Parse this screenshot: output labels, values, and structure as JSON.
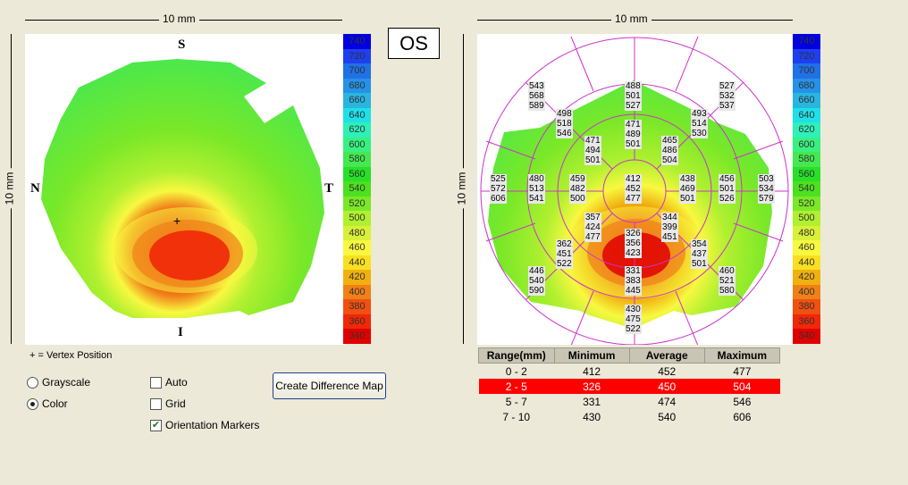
{
  "left_panel": {
    "dim_top": "10 mm",
    "dim_side": "10 mm",
    "markers": {
      "superior": "S",
      "inferior": "I",
      "nasal": "N",
      "temporal": "T"
    },
    "vertex_symbol": "+",
    "vertex_legend": "+ = Vertex Position"
  },
  "eye_label": "OS",
  "scale_values": [
    "740",
    "720",
    "700",
    "680",
    "660",
    "640",
    "620",
    "600",
    "580",
    "560",
    "540",
    "520",
    "500",
    "480",
    "460",
    "440",
    "420",
    "400",
    "380",
    "360",
    "340"
  ],
  "scale_colors": [
    "#0000e0",
    "#1d3ff0",
    "#2070e8",
    "#2592e8",
    "#29b5e0",
    "#1ee0e8",
    "#2ef0b8",
    "#38f080",
    "#45e850",
    "#27e028",
    "#4ee020",
    "#7ae828",
    "#b0f030",
    "#d8f038",
    "#f8f840",
    "#f8e020",
    "#f0b010",
    "#f08018",
    "#f05010",
    "#f02808",
    "#e00000"
  ],
  "controls": {
    "grayscale": "Grayscale",
    "color": "Color",
    "selected_mode": "Color",
    "auto": "Auto",
    "auto_checked": false,
    "grid": "Grid",
    "grid_checked": false,
    "orientation": "Orientation Markers",
    "orientation_checked": true,
    "diff_button": "Create Difference Map"
  },
  "right_panel": {
    "dim_top": "10 mm",
    "dim_side": "10 mm",
    "zones": [
      {
        "id": "center",
        "v": [
          "412",
          "452",
          "477"
        ]
      },
      {
        "id": "inner-up",
        "v": [
          "471",
          "489",
          "501"
        ]
      },
      {
        "id": "inner-upright",
        "v": [
          "465",
          "486",
          "504"
        ]
      },
      {
        "id": "inner-right",
        "v": [
          "438",
          "469",
          "501"
        ]
      },
      {
        "id": "inner-downright",
        "v": [
          "344",
          "399",
          "451"
        ]
      },
      {
        "id": "inner-down",
        "v": [
          "326",
          "356",
          "423"
        ]
      },
      {
        "id": "inner-downleft",
        "v": [
          "357",
          "424",
          "477"
        ]
      },
      {
        "id": "inner-left",
        "v": [
          "459",
          "482",
          "500"
        ]
      },
      {
        "id": "inner-upleft",
        "v": [
          "471",
          "494",
          "501"
        ]
      },
      {
        "id": "mid-up",
        "v": [
          "488",
          "501",
          "527"
        ]
      },
      {
        "id": "mid-upright",
        "v": [
          "493",
          "514",
          "530"
        ]
      },
      {
        "id": "mid-right",
        "v": [
          "456",
          "501",
          "526"
        ]
      },
      {
        "id": "mid-downright",
        "v": [
          "354",
          "437",
          "501"
        ]
      },
      {
        "id": "mid-down",
        "v": [
          "331",
          "383",
          "445"
        ]
      },
      {
        "id": "mid-downleft",
        "v": [
          "362",
          "451",
          "522"
        ]
      },
      {
        "id": "mid-left",
        "v": [
          "480",
          "513",
          "541"
        ]
      },
      {
        "id": "mid-upleft",
        "v": [
          "498",
          "518",
          "546"
        ]
      },
      {
        "id": "outer-upright",
        "v": [
          "527",
          "532",
          "537"
        ]
      },
      {
        "id": "outer-right",
        "v": [
          "503",
          "534",
          "579"
        ]
      },
      {
        "id": "outer-downright",
        "v": [
          "460",
          "521",
          "580"
        ]
      },
      {
        "id": "outer-down",
        "v": [
          "430",
          "475",
          "522"
        ]
      },
      {
        "id": "outer-downleft",
        "v": [
          "446",
          "540",
          "590"
        ]
      },
      {
        "id": "outer-left",
        "v": [
          "525",
          "572",
          "606"
        ]
      },
      {
        "id": "outer-upleft",
        "v": [
          "543",
          "568",
          "589"
        ]
      }
    ]
  },
  "table": {
    "headers": [
      "Range(mm)",
      "Minimum",
      "Average",
      "Maximum"
    ],
    "rows": [
      [
        "0 - 2",
        "412",
        "452",
        "477"
      ],
      [
        "2 - 5",
        "326",
        "450",
        "504"
      ],
      [
        "5 - 7",
        "331",
        "474",
        "546"
      ],
      [
        "7 - 10",
        "430",
        "540",
        "606"
      ]
    ],
    "highlighted_row": 1,
    "highlight_color": "#ff0000"
  }
}
